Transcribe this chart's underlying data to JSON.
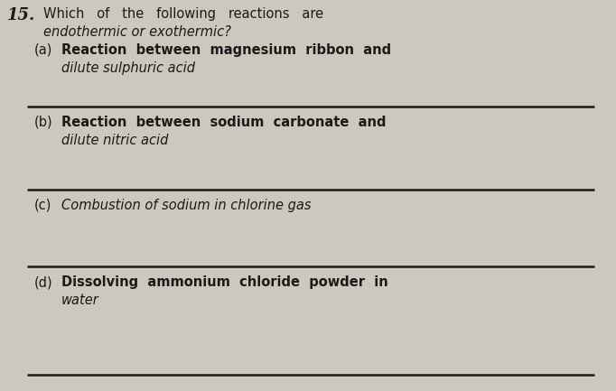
{
  "background_color": "#cdc8be",
  "text_color": "#1a1a1a",
  "question_number": "15.",
  "title_line1": "Which   of   the   following   reactions   are",
  "title_line2": "endothermic or exothermic?",
  "item_a_label": "(a)",
  "item_a_line1": "Reaction  between  magnesium  ribbon  and",
  "item_a_line2": "dilute sulphuric acid",
  "item_b_label": "(b)",
  "item_b_line1": "Reaction  between  sodium  carbonate  and",
  "item_b_line2": "dilute nitric acid",
  "item_c_label": "(c)",
  "item_c_line1": "Combustion of sodium in chlorine gas",
  "item_d_label": "(d)",
  "item_d_line1": "Dissolving  ammonium  chloride  powder  in",
  "item_d_line2": "water",
  "figsize": [
    6.82,
    4.33
  ],
  "dpi": 100,
  "fontsize_main": 10.5,
  "fontsize_number": 13
}
